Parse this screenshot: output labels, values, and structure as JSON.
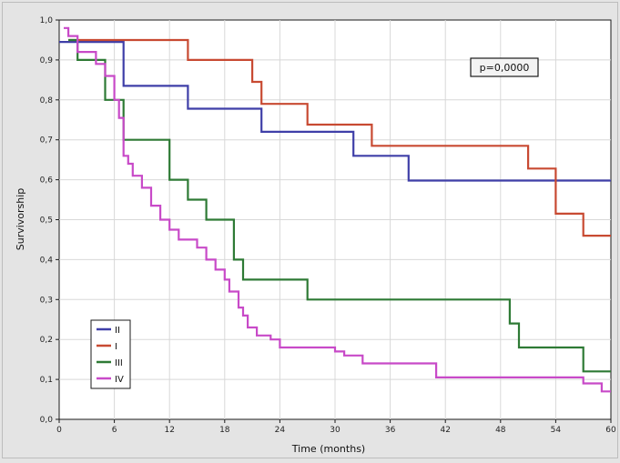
{
  "chart_data": {
    "type": "line",
    "subtype": "kaplan-meier step",
    "title": "",
    "xlabel": "Time (months)",
    "ylabel": "Survivorship",
    "xlim": [
      0,
      60
    ],
    "ylim": [
      0.0,
      1.0
    ],
    "x_ticks": [
      0,
      6,
      12,
      18,
      24,
      30,
      36,
      42,
      48,
      54,
      60
    ],
    "x_tick_labels": [
      "0",
      "6",
      "12",
      "18",
      "24",
      "30",
      "36",
      "42",
      "48",
      "54",
      "60"
    ],
    "y_ticks": [
      0,
      0.1,
      0.2,
      0.3,
      0.4,
      0.5,
      0.6,
      0.7,
      0.8,
      0.9,
      1.0
    ],
    "y_tick_labels": [
      "0,0",
      "0,1",
      "0,2",
      "0,3",
      "0,4",
      "0,5",
      "0,6",
      "0,7",
      "0,8",
      "0,9",
      "1,0"
    ],
    "grid": true,
    "legend_position": "bottom-left",
    "annotation": "p=0,0000",
    "series": [
      {
        "name": "II",
        "color": "#3f3fa8",
        "points": [
          [
            0,
            0.945
          ],
          [
            7,
            0.945
          ],
          [
            7,
            0.835
          ],
          [
            14,
            0.835
          ],
          [
            14,
            0.778
          ],
          [
            22,
            0.778
          ],
          [
            22,
            0.72
          ],
          [
            32,
            0.72
          ],
          [
            32,
            0.66
          ],
          [
            38,
            0.66
          ],
          [
            38,
            0.598
          ],
          [
            60,
            0.598
          ]
        ]
      },
      {
        "name": "I",
        "color": "#c84a32",
        "points": [
          [
            1,
            0.95
          ],
          [
            14,
            0.95
          ],
          [
            14,
            0.9
          ],
          [
            21,
            0.9
          ],
          [
            21,
            0.845
          ],
          [
            22,
            0.845
          ],
          [
            22,
            0.79
          ],
          [
            27,
            0.79
          ],
          [
            27,
            0.738
          ],
          [
            34,
            0.738
          ],
          [
            34,
            0.685
          ],
          [
            51,
            0.685
          ],
          [
            51,
            0.628
          ],
          [
            54,
            0.628
          ],
          [
            54,
            0.515
          ],
          [
            57,
            0.515
          ],
          [
            57,
            0.46
          ],
          [
            60,
            0.46
          ]
        ]
      },
      {
        "name": "III",
        "color": "#2e7a35",
        "points": [
          [
            1,
            0.95
          ],
          [
            2,
            0.95
          ],
          [
            2,
            0.9
          ],
          [
            5,
            0.9
          ],
          [
            5,
            0.8
          ],
          [
            7,
            0.8
          ],
          [
            7,
            0.7
          ],
          [
            12,
            0.7
          ],
          [
            12,
            0.6
          ],
          [
            14,
            0.6
          ],
          [
            14,
            0.55
          ],
          [
            16,
            0.55
          ],
          [
            16,
            0.5
          ],
          [
            19,
            0.5
          ],
          [
            19,
            0.4
          ],
          [
            20,
            0.4
          ],
          [
            20,
            0.35
          ],
          [
            27,
            0.35
          ],
          [
            27,
            0.3
          ],
          [
            49,
            0.3
          ],
          [
            49,
            0.24
          ],
          [
            50,
            0.24
          ],
          [
            50,
            0.18
          ],
          [
            57,
            0.18
          ],
          [
            57,
            0.12
          ],
          [
            60,
            0.12
          ]
        ]
      },
      {
        "name": "IV",
        "color": "#c84ac8",
        "points": [
          [
            0.5,
            0.98
          ],
          [
            1,
            0.98
          ],
          [
            1,
            0.96
          ],
          [
            2,
            0.96
          ],
          [
            2,
            0.92
          ],
          [
            4,
            0.92
          ],
          [
            4,
            0.89
          ],
          [
            5,
            0.89
          ],
          [
            5,
            0.86
          ],
          [
            6,
            0.86
          ],
          [
            6,
            0.8
          ],
          [
            6.5,
            0.8
          ],
          [
            6.5,
            0.755
          ],
          [
            7,
            0.755
          ],
          [
            7,
            0.66
          ],
          [
            7.5,
            0.66
          ],
          [
            7.5,
            0.64
          ],
          [
            8,
            0.64
          ],
          [
            8,
            0.61
          ],
          [
            9,
            0.61
          ],
          [
            9,
            0.58
          ],
          [
            10,
            0.58
          ],
          [
            10,
            0.535
          ],
          [
            11,
            0.535
          ],
          [
            11,
            0.5
          ],
          [
            12,
            0.5
          ],
          [
            12,
            0.475
          ],
          [
            13,
            0.475
          ],
          [
            13,
            0.45
          ],
          [
            15,
            0.45
          ],
          [
            15,
            0.43
          ],
          [
            16,
            0.43
          ],
          [
            16,
            0.4
          ],
          [
            17,
            0.4
          ],
          [
            17,
            0.375
          ],
          [
            18,
            0.375
          ],
          [
            18,
            0.35
          ],
          [
            18.5,
            0.35
          ],
          [
            18.5,
            0.32
          ],
          [
            19.5,
            0.32
          ],
          [
            19.5,
            0.28
          ],
          [
            20,
            0.28
          ],
          [
            20,
            0.26
          ],
          [
            20.5,
            0.26
          ],
          [
            20.5,
            0.23
          ],
          [
            21.5,
            0.23
          ],
          [
            21.5,
            0.21
          ],
          [
            23,
            0.21
          ],
          [
            23,
            0.2
          ],
          [
            24,
            0.2
          ],
          [
            24,
            0.18
          ],
          [
            30,
            0.18
          ],
          [
            30,
            0.17
          ],
          [
            31,
            0.17
          ],
          [
            31,
            0.16
          ],
          [
            33,
            0.16
          ],
          [
            33,
            0.14
          ],
          [
            41,
            0.14
          ],
          [
            41,
            0.105
          ],
          [
            57,
            0.105
          ],
          [
            57,
            0.09
          ],
          [
            59,
            0.09
          ],
          [
            59,
            0.07
          ],
          [
            60,
            0.07
          ]
        ]
      }
    ]
  }
}
